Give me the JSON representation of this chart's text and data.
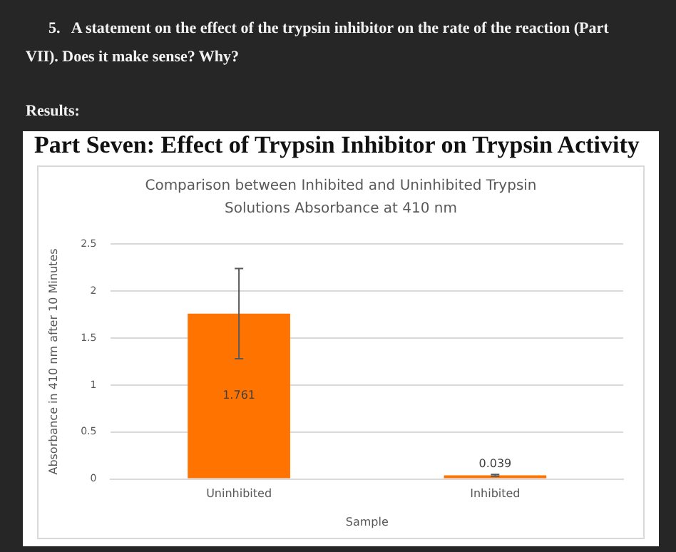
{
  "chart_data": {
    "type": "bar",
    "title": "Part Seven: Effect of Trypsin Inhibitor on Trypsin Activity",
    "subtitle": "Comparison between Inhibited and Uninhibited Trypsin Solutions Absorbance at 410 nm",
    "annotations": [
      "5.   A statement on the effect of the trypsin inhibitor on the rate of the reaction (Part VII). Does it make sense? Why?",
      "Results:"
    ],
    "xlabel": "Sample",
    "ylabel": "Absorbance in 410 nm after 10 Minutes",
    "categories": [
      "Uninhibited",
      "Inhibited"
    ],
    "values": [
      1.761,
      0.039
    ],
    "errors": [
      0.48,
      0.01
    ],
    "color": "#ff7300",
    "ylim": [
      0,
      2.5
    ],
    "yticks": [
      0,
      0.5,
      1,
      1.5,
      2,
      2.5
    ],
    "grid": "y",
    "data_labels": true,
    "legend": false
  }
}
